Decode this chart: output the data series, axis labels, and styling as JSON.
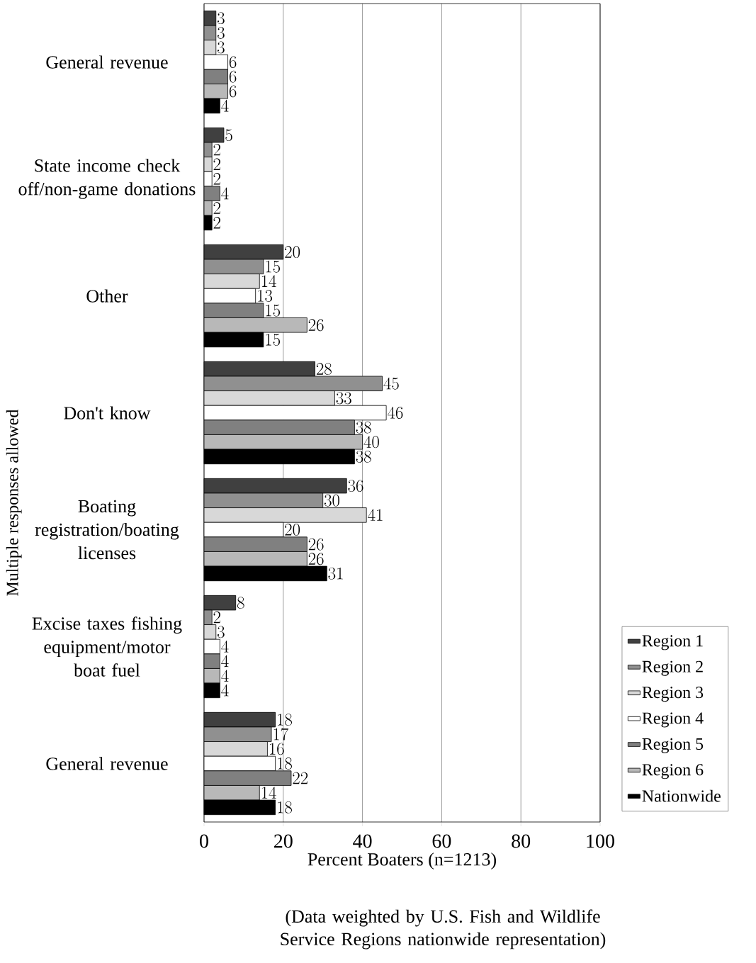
{
  "chart_data": {
    "type": "bar",
    "orientation": "horizontal",
    "xlabel": "Percent Boaters (n=1213)",
    "ylabel": "Multiple responses allowed",
    "annotations": [
      "(Data weighted by U.S. Fish and Wildlife Service Regions nationwide representation)"
    ],
    "categories": [
      "General revenue",
      "State income check off/non-game donations",
      "Other",
      "Don't know",
      "Boating registration/boating licenses",
      "Excise taxes fishing equipment/motor boat fuel",
      "General revenue"
    ],
    "series": [
      {
        "name": "Region 1",
        "color": "#404040",
        "values": [
          3,
          5,
          20,
          28,
          36,
          8,
          18
        ]
      },
      {
        "name": "Region 2",
        "color": "#909090",
        "values": [
          3,
          2,
          15,
          45,
          30,
          2,
          17
        ]
      },
      {
        "name": "Region 3",
        "color": "#d8d8d8",
        "values": [
          3,
          2,
          14,
          33,
          41,
          3,
          16
        ]
      },
      {
        "name": "Region 4",
        "color": "#ffffff",
        "values": [
          6,
          2,
          13,
          46,
          20,
          4,
          18
        ]
      },
      {
        "name": "Region 5",
        "color": "#808080",
        "values": [
          6,
          4,
          15,
          38,
          26,
          4,
          22
        ]
      },
      {
        "name": "Region 6",
        "color": "#b8b8b8",
        "values": [
          6,
          2,
          26,
          40,
          26,
          4,
          14
        ]
      },
      {
        "name": "Nationwide",
        "color": "#000000",
        "values": [
          4,
          2,
          15,
          38,
          31,
          4,
          18
        ]
      }
    ],
    "xlim": [
      0,
      100
    ],
    "xticks": [
      0,
      20,
      40,
      60,
      80,
      100
    ],
    "grid": "x",
    "legend": "right",
    "data_labels": true
  }
}
